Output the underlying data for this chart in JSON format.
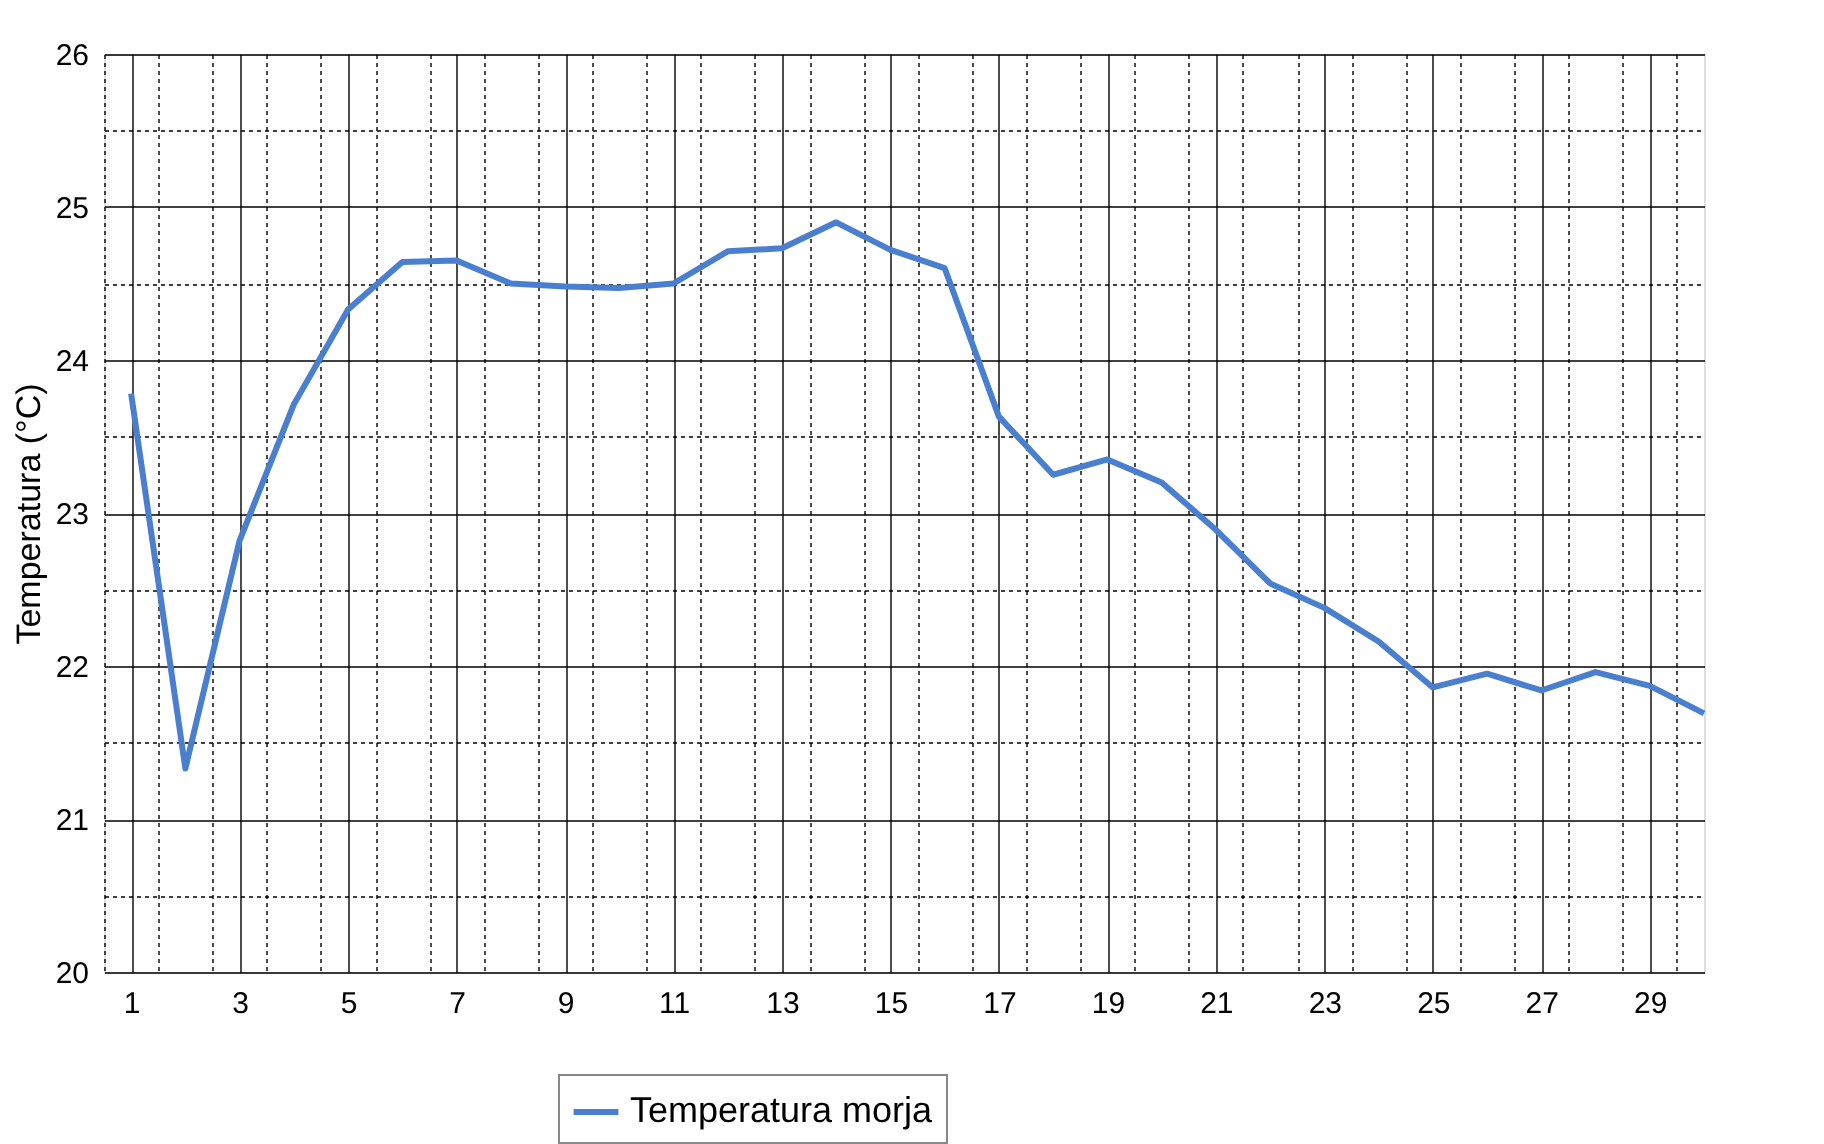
{
  "chart_data": {
    "type": "line",
    "ylabel": "Temperatura (°C)",
    "x": [
      1,
      2,
      3,
      4,
      5,
      6,
      7,
      8,
      9,
      10,
      11,
      12,
      13,
      14,
      15,
      16,
      17,
      18,
      19,
      20,
      21,
      22,
      23,
      24,
      25,
      26,
      27,
      28,
      29,
      30
    ],
    "series": [
      {
        "name": "Temperatura morja",
        "color": "#4a7fcf",
        "values": [
          23.78,
          21.33,
          22.82,
          23.71,
          24.33,
          24.64,
          24.65,
          24.5,
          24.48,
          24.47,
          24.5,
          24.71,
          24.73,
          24.9,
          24.72,
          24.6,
          23.63,
          23.25,
          23.35,
          23.2,
          22.89,
          22.54,
          22.38,
          22.16,
          21.86,
          21.95,
          21.84,
          21.96,
          21.87,
          21.69
        ]
      }
    ],
    "xlim": [
      0.5,
      30
    ],
    "xticks": [
      {
        "value": 0.5,
        "label": null
      },
      1,
      {
        "value": 1.5,
        "label": null
      },
      {
        "value": 2.5,
        "label": null
      },
      3,
      {
        "value": 3.5,
        "label": null
      },
      {
        "value": 4.5,
        "label": null
      },
      5,
      {
        "value": 5.5,
        "label": null
      },
      {
        "value": 6.5,
        "label": null
      },
      7,
      {
        "value": 7.5,
        "label": null
      },
      {
        "value": 8.5,
        "label": null
      },
      9,
      {
        "value": 9.5,
        "label": null
      },
      {
        "value": 10.5,
        "label": null
      },
      11,
      {
        "value": 11.5,
        "label": null
      },
      {
        "value": 12.5,
        "label": null
      },
      13,
      {
        "value": 13.5,
        "label": null
      },
      {
        "value": 14.5,
        "label": null
      },
      15,
      {
        "value": 15.5,
        "label": null
      },
      {
        "value": 16.5,
        "label": null
      },
      17,
      {
        "value": 17.5,
        "label": null
      },
      {
        "value": 18.5,
        "label": null
      },
      19,
      {
        "value": 19.5,
        "label": null
      },
      {
        "value": 20.5,
        "label": null
      },
      21,
      {
        "value": 21.5,
        "label": null
      },
      {
        "value": 22.5,
        "label": null
      },
      23,
      {
        "value": 23.5,
        "label": null
      },
      {
        "value": 24.5,
        "label": null
      },
      25,
      {
        "value": 25.5,
        "label": null
      },
      {
        "value": 26.5,
        "label": null
      },
      27,
      {
        "value": 27.5,
        "label": null
      },
      {
        "value": 28.5,
        "label": null
      },
      29,
      {
        "value": 29.5,
        "label": null
      }
    ],
    "ylim": [
      20,
      26
    ],
    "yticks": [
      20,
      {
        "value": 20.5,
        "label": null
      },
      21,
      {
        "value": 21.5,
        "label": null
      },
      22,
      {
        "value": 22.5,
        "label": null
      },
      23,
      {
        "value": 23.5,
        "label": null
      },
      24,
      {
        "value": 24.5,
        "label": null
      },
      25,
      {
        "value": 25.5,
        "label": null
      },
      26
    ],
    "grid": true,
    "legend": "bottom",
    "marker": "none",
    "line_style": "solid"
  }
}
